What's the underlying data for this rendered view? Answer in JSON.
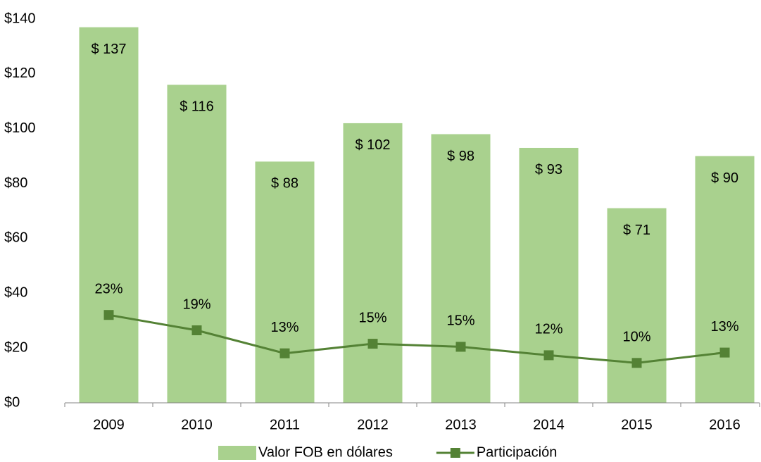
{
  "chart_data": {
    "type": "bar-line",
    "categories": [
      "2009",
      "2010",
      "2011",
      "2012",
      "2013",
      "2014",
      "2015",
      "2016"
    ],
    "series": [
      {
        "name": "Valor FOB en dólares",
        "color": "#a9d18e",
        "type": "bar",
        "values": [
          137,
          116,
          88,
          102,
          98,
          93,
          71,
          90
        ],
        "value_labels": [
          "$ 137",
          "$ 116",
          "$ 88",
          "$ 102",
          "$ 98",
          "$ 93",
          "$ 71",
          "$ 90"
        ]
      },
      {
        "name": "Participación",
        "color": "#548235",
        "type": "line",
        "axis": "y2",
        "values": [
          22.9,
          18.9,
          12.9,
          15.4,
          14.6,
          12.4,
          10.4,
          13.1
        ],
        "value_labels": [
          "23%",
          "19%",
          "13%",
          "15%",
          "15%",
          "12%",
          "10%",
          "13%"
        ]
      }
    ],
    "ylim": [
      0,
      140
    ],
    "yticks": [
      {
        "value": 0,
        "label": "$0"
      },
      {
        "value": 20,
        "label": "$20"
      },
      {
        "value": 40,
        "label": "$40"
      },
      {
        "value": 60,
        "label": "$60"
      },
      {
        "value": 80,
        "label": "$80"
      },
      {
        "value": 100,
        "label": "$100"
      },
      {
        "value": 120,
        "label": "$120"
      },
      {
        "value": 140,
        "label": "$140"
      }
    ],
    "y2lim": [
      0,
      100
    ],
    "grid": false,
    "legend": "bottom"
  }
}
